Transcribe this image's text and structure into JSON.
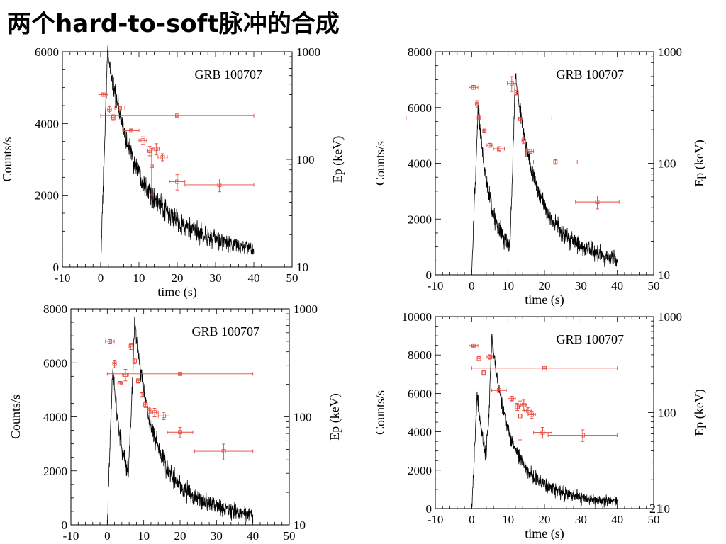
{
  "page": {
    "title": "两个hard-to-soft脉冲的合成",
    "page_number": "21"
  },
  "colors": {
    "curve": "#000000",
    "ep_points": "#e8483c",
    "axes": "#000000"
  },
  "chart_data": [
    {
      "type": "line",
      "title": "GRB 100707",
      "xlabel": "time (s)",
      "ylabel": "Counts/s",
      "y2label": "Ep (keV)",
      "xlim": [
        -10,
        50
      ],
      "ylim": [
        0,
        6000
      ],
      "y2lim": [
        10,
        1000
      ],
      "y2scale": "log",
      "xticks": [
        -10,
        0,
        10,
        20,
        30,
        40,
        50
      ],
      "yticks": [
        0,
        2000,
        4000,
        6000
      ],
      "y2ticks": [
        10,
        100,
        1000
      ],
      "lightcurve": {
        "start": 0,
        "pulses": [
          {
            "t0": 0.0,
            "amp": 6000,
            "rise": 1.8,
            "decay": 6.5,
            "tail": 0.35
          }
        ],
        "noise": 220,
        "end": 40
      },
      "ep_points": [
        {
          "t": 0.7,
          "ep": 400,
          "terr": 1.2,
          "eerr": 15
        },
        {
          "t": 2.3,
          "ep": 290,
          "terr": 0.5,
          "eerr": 20
        },
        {
          "t": 3.3,
          "ep": 245,
          "terr": 0.4,
          "eerr": 15
        },
        {
          "t": 5.0,
          "ep": 300,
          "terr": 1.3,
          "eerr": 10
        },
        {
          "t": 20,
          "ep": 255,
          "terr": 20,
          "eerr": 4
        },
        {
          "t": 8.0,
          "ep": 185,
          "terr": 2.0,
          "eerr": 5
        },
        {
          "t": 11.0,
          "ep": 150,
          "terr": 1.0,
          "eerr": 12
        },
        {
          "t": 12.8,
          "ep": 120,
          "terr": 0.6,
          "eerr": 12
        },
        {
          "t": 14.5,
          "ep": 125,
          "terr": 0.8,
          "eerr": 15
        },
        {
          "t": 16.2,
          "ep": 105,
          "terr": 1.2,
          "eerr": 8
        },
        {
          "t": 13.3,
          "ep": 87,
          "terr": 0.4,
          "eerr": 40
        },
        {
          "t": 20.0,
          "ep": 62,
          "terr": 2.0,
          "eerr": 10
        },
        {
          "t": 31.0,
          "ep": 58,
          "terr": 9.0,
          "eerr": 8
        }
      ]
    },
    {
      "type": "line",
      "title": "GRB 100707",
      "xlabel": "time (s)",
      "ylabel": "Counts/s",
      "y2label": "Ep (keV)",
      "xlim": [
        -10,
        50
      ],
      "ylim": [
        0,
        8000
      ],
      "y2lim": [
        10,
        1000
      ],
      "y2scale": "log",
      "xticks": [
        -10,
        0,
        10,
        20,
        30,
        40,
        50
      ],
      "yticks": [
        0,
        2000,
        4000,
        6000,
        8000
      ],
      "y2ticks": [
        10,
        100,
        1000
      ],
      "lightcurve": {
        "start": 0,
        "pulses": [
          {
            "t0": 0.0,
            "amp": 6000,
            "rise": 1.8,
            "decay": 2.8,
            "tail": 0.3,
            "cutoff": 10.5,
            "cutwidth": 0.6
          },
          {
            "t0": 10.5,
            "amp": 7200,
            "rise": 1.5,
            "decay": 5.0,
            "tail": 0.3
          }
        ],
        "noise": 250,
        "end": 40
      },
      "ep_points": [
        {
          "t": 0.5,
          "ep": 480,
          "terr": 1.2,
          "eerr": 20
        },
        {
          "t": 1.5,
          "ep": 340,
          "terr": 0.4,
          "eerr": 25
        },
        {
          "t": 2.0,
          "ep": 255,
          "terr": 20,
          "eerr": 5
        },
        {
          "t": 3.5,
          "ep": 195,
          "terr": 0.4,
          "eerr": 8
        },
        {
          "t": 5.0,
          "ep": 145,
          "terr": 0.8,
          "eerr": 6
        },
        {
          "t": 7.5,
          "ep": 135,
          "terr": 1.5,
          "eerr": 6
        },
        {
          "t": 11.0,
          "ep": 520,
          "terr": 1.2,
          "eerr": 80
        },
        {
          "t": 12.3,
          "ep": 430,
          "terr": 0.4,
          "eerr": 20
        },
        {
          "t": 13.3,
          "ep": 250,
          "terr": 0.4,
          "eerr": 20
        },
        {
          "t": 14.3,
          "ep": 160,
          "terr": 0.5,
          "eerr": 10
        },
        {
          "t": 16.0,
          "ep": 128,
          "terr": 1.0,
          "eerr": 6
        },
        {
          "t": 23.0,
          "ep": 103,
          "terr": 6.0,
          "eerr": 5
        },
        {
          "t": 34.5,
          "ep": 45,
          "terr": 6.0,
          "eerr": 6
        }
      ]
    },
    {
      "type": "line",
      "title": "GRB 100707",
      "xlabel": "",
      "ylabel": "Counts/s",
      "y2label": "Ep (keV)",
      "xlim": [
        -10,
        50
      ],
      "ylim": [
        0,
        8000
      ],
      "y2lim": [
        10,
        1000
      ],
      "y2scale": "log",
      "xticks": [
        -10,
        0,
        10,
        20,
        30,
        40,
        50
      ],
      "yticks": [
        0,
        2000,
        4000,
        6000,
        8000
      ],
      "y2ticks": [
        10,
        100,
        1000
      ],
      "lightcurve": {
        "start": 0,
        "pulses": [
          {
            "t0": 0.0,
            "amp": 5900,
            "rise": 1.5,
            "decay": 2.5,
            "tail": 0.3,
            "cutoff": 5.5,
            "cutwidth": 0.5
          },
          {
            "t0": 5.5,
            "amp": 7500,
            "rise": 2.0,
            "decay": 4.5,
            "tail": 0.3
          }
        ],
        "noise": 260,
        "end": 40
      },
      "ep_points": [
        {
          "t": 0.7,
          "ep": 500,
          "terr": 1.2,
          "eerr": 20
        },
        {
          "t": 2.0,
          "ep": 310,
          "terr": 0.5,
          "eerr": 25
        },
        {
          "t": 3.5,
          "ep": 205,
          "terr": 0.6,
          "eerr": 8
        },
        {
          "t": 5.0,
          "ep": 245,
          "terr": 0.8,
          "eerr": 30
        },
        {
          "t": 20,
          "ep": 250,
          "terr": 20,
          "eerr": 4
        },
        {
          "t": 6.5,
          "ep": 450,
          "terr": 0.5,
          "eerr": 30
        },
        {
          "t": 7.5,
          "ep": 330,
          "terr": 0.5,
          "eerr": 20
        },
        {
          "t": 8.5,
          "ep": 215,
          "terr": 0.5,
          "eerr": 10
        },
        {
          "t": 9.5,
          "ep": 160,
          "terr": 0.5,
          "eerr": 8
        },
        {
          "t": 10.5,
          "ep": 130,
          "terr": 0.5,
          "eerr": 8
        },
        {
          "t": 11.5,
          "ep": 115,
          "terr": 0.5,
          "eerr": 8
        },
        {
          "t": 13.0,
          "ep": 110,
          "terr": 1.0,
          "eerr": 10
        },
        {
          "t": 15.5,
          "ep": 102,
          "terr": 1.5,
          "eerr": 8
        },
        {
          "t": 20.0,
          "ep": 72,
          "terr": 3.5,
          "eerr": 8
        },
        {
          "t": 32.0,
          "ep": 48,
          "terr": 8.0,
          "eerr": 8
        }
      ]
    },
    {
      "type": "line",
      "title": "GRB 100707",
      "xlabel": "time (s)",
      "ylabel": "Counts/s",
      "y2label": "Ep (keV)",
      "xlim": [
        -10,
        50
      ],
      "ylim": [
        0,
        10000
      ],
      "y2lim": [
        10,
        1000
      ],
      "y2scale": "log",
      "xticks": [
        -10,
        0,
        10,
        20,
        30,
        40,
        50
      ],
      "yticks": [
        0,
        2000,
        4000,
        6000,
        8000,
        10000
      ],
      "y2ticks": [
        10,
        100,
        1000
      ],
      "lightcurve": {
        "start": 0,
        "pulses": [
          {
            "t0": 0.0,
            "amp": 5900,
            "rise": 1.5,
            "decay": 2.5,
            "tail": 0.25,
            "cutoff": 4.2,
            "cutwidth": 0.4
          },
          {
            "t0": 4.0,
            "amp": 8800,
            "rise": 1.5,
            "decay": 4.5,
            "tail": 0.25
          }
        ],
        "noise": 280,
        "end": 40
      },
      "ep_points": [
        {
          "t": 0.5,
          "ep": 500,
          "terr": 1.2,
          "eerr": 15
        },
        {
          "t": 2.0,
          "ep": 365,
          "terr": 0.5,
          "eerr": 20
        },
        {
          "t": 3.3,
          "ep": 260,
          "terr": 0.4,
          "eerr": 15
        },
        {
          "t": 20,
          "ep": 290,
          "terr": 20,
          "eerr": 4
        },
        {
          "t": 5.0,
          "ep": 380,
          "terr": 0.8,
          "eerr": 20
        },
        {
          "t": 7.5,
          "ep": 170,
          "terr": 2.0,
          "eerr": 8
        },
        {
          "t": 11.0,
          "ep": 140,
          "terr": 1.0,
          "eerr": 8
        },
        {
          "t": 12.5,
          "ep": 115,
          "terr": 0.6,
          "eerr": 10
        },
        {
          "t": 13.3,
          "ep": 92,
          "terr": 0.4,
          "eerr": 40
        },
        {
          "t": 14.3,
          "ep": 120,
          "terr": 0.8,
          "eerr": 15
        },
        {
          "t": 15.5,
          "ep": 105,
          "terr": 1.0,
          "eerr": 8
        },
        {
          "t": 16.5,
          "ep": 95,
          "terr": 1.0,
          "eerr": 8
        },
        {
          "t": 19.5,
          "ep": 62,
          "terr": 2.5,
          "eerr": 8
        },
        {
          "t": 30.5,
          "ep": 58,
          "terr": 9.5,
          "eerr": 8
        }
      ]
    }
  ]
}
